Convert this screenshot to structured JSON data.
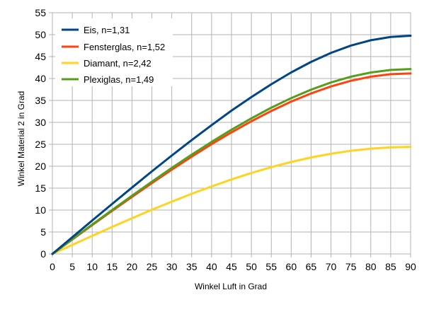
{
  "chart_data": {
    "type": "line",
    "title": "",
    "xlabel": "Winkel Luft in Grad",
    "ylabel": "Winkel Material 2 in Grad",
    "xlim": [
      0,
      90
    ],
    "ylim": [
      0,
      55
    ],
    "x_ticks": [
      0,
      5,
      10,
      15,
      20,
      25,
      30,
      35,
      40,
      45,
      50,
      55,
      60,
      65,
      70,
      75,
      80,
      85,
      90
    ],
    "y_ticks": [
      0,
      5,
      10,
      15,
      20,
      25,
      30,
      35,
      40,
      45,
      50,
      55
    ],
    "grid": true,
    "legend_position": "top-left",
    "x": [
      0,
      5,
      10,
      15,
      20,
      25,
      30,
      35,
      40,
      45,
      50,
      55,
      60,
      65,
      70,
      75,
      80,
      85,
      90
    ],
    "series": [
      {
        "name": "Eis, n=1,31",
        "color": "#004586",
        "values": [
          0,
          3.81,
          7.62,
          11.39,
          15.13,
          18.83,
          22.44,
          25.96,
          29.37,
          32.68,
          35.77,
          38.69,
          41.39,
          43.79,
          45.85,
          47.51,
          48.73,
          49.47,
          49.76
        ]
      },
      {
        "name": "Fensterglas, n=1,52",
        "color": "#ff420e",
        "values": [
          0,
          3.29,
          6.56,
          9.81,
          13.01,
          16.15,
          19.22,
          22.18,
          25.03,
          27.72,
          30.26,
          32.6,
          34.73,
          36.6,
          38.2,
          39.49,
          40.42,
          40.98,
          41.14
        ]
      },
      {
        "name": "Diamant, n=2,42",
        "color": "#ffd320",
        "values": [
          0,
          2.06,
          4.11,
          6.15,
          8.13,
          10.08,
          11.92,
          13.71,
          15.38,
          16.98,
          18.45,
          19.78,
          20.97,
          22.0,
          22.84,
          23.52,
          24.01,
          24.3,
          24.41
        ]
      },
      {
        "name": "Plexiglas, n=1,49",
        "color": "#579d1c",
        "values": [
          0,
          3.36,
          6.7,
          10.0,
          13.28,
          16.48,
          19.61,
          22.64,
          25.55,
          28.32,
          30.92,
          33.35,
          35.53,
          37.46,
          39.1,
          40.42,
          41.37,
          41.95,
          42.16
        ]
      }
    ]
  }
}
